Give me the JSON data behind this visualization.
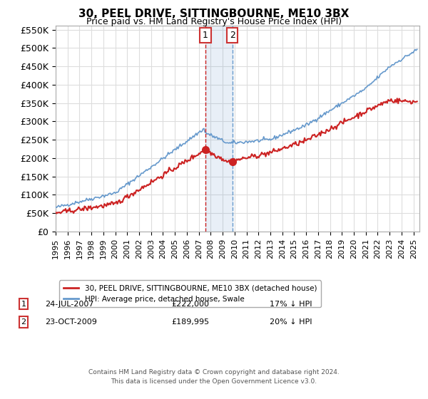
{
  "title": "30, PEEL DRIVE, SITTINGBOURNE, ME10 3BX",
  "subtitle": "Price paid vs. HM Land Registry's House Price Index (HPI)",
  "ylim": [
    0,
    560000
  ],
  "yticks": [
    0,
    50000,
    100000,
    150000,
    200000,
    250000,
    300000,
    350000,
    400000,
    450000,
    500000,
    550000
  ],
  "ytick_labels": [
    "£0",
    "£50K",
    "£100K",
    "£150K",
    "£200K",
    "£250K",
    "£300K",
    "£350K",
    "£400K",
    "£450K",
    "£500K",
    "£550K"
  ],
  "hpi_color": "#6699cc",
  "price_color": "#cc2222",
  "marker1_date": 2007.56,
  "marker1_price": 222000,
  "marker1_label": "1",
  "marker2_date": 2009.81,
  "marker2_price": 189995,
  "marker2_label": "2",
  "legend_label_red": "30, PEEL DRIVE, SITTINGBOURNE, ME10 3BX (detached house)",
  "legend_label_blue": "HPI: Average price, detached house, Swale",
  "annotation1_date": "24-JUL-2007",
  "annotation1_price": "£222,000",
  "annotation1_pct": "17% ↓ HPI",
  "annotation2_date": "23-OCT-2009",
  "annotation2_price": "£189,995",
  "annotation2_pct": "20% ↓ HPI",
  "footer": "Contains HM Land Registry data © Crown copyright and database right 2024.\nThis data is licensed under the Open Government Licence v3.0.",
  "background_color": "#ffffff",
  "grid_color": "#dddddd"
}
